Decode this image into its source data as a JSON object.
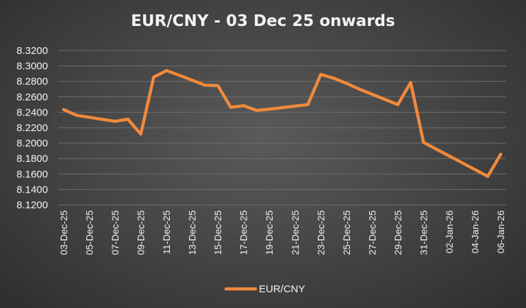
{
  "chart_data": {
    "type": "line",
    "title": "EUR/CNY - 03 Dec 25 onwards",
    "xlabel": "",
    "ylabel": "",
    "ylim": [
      8.12,
      8.32
    ],
    "ytick_step": 0.02,
    "ytick_labels": [
      "8.1200",
      "8.1400",
      "8.1600",
      "8.1800",
      "8.2000",
      "8.2200",
      "8.2400",
      "8.2600",
      "8.2800",
      "8.3000",
      "8.3200"
    ],
    "x_tick_labels": [
      "03-Dec-25",
      "05-Dec-25",
      "07-Dec-25",
      "09-Dec-25",
      "11-Dec-25",
      "13-Dec-25",
      "15-Dec-25",
      "17-Dec-25",
      "19-Dec-25",
      "21-Dec-25",
      "23-Dec-25",
      "25-Dec-25",
      "27-Dec-25",
      "29-Dec-25",
      "31-Dec-25",
      "02-Jan-26",
      "04-Jan-26",
      "06-Jan-26"
    ],
    "x": [
      "03-Dec-25",
      "04-Dec-25",
      "07-Dec-25",
      "08-Dec-25",
      "09-Dec-25",
      "10-Dec-25",
      "11-Dec-25",
      "12-Dec-25",
      "14-Dec-25",
      "15-Dec-25",
      "16-Dec-25",
      "17-Dec-25",
      "18-Dec-25",
      "19-Dec-25",
      "20-Dec-25",
      "22-Dec-25",
      "23-Dec-25",
      "24-Dec-25",
      "25-Dec-25",
      "26-Dec-25",
      "29-Dec-25",
      "30-Dec-25",
      "31-Dec-25",
      "05-Jan-26",
      "06-Jan-26"
    ],
    "series": [
      {
        "name": "EUR/CNY",
        "color": "#f08a3c",
        "values": [
          8.2435,
          8.236,
          8.2283,
          8.231,
          8.2118,
          8.2855,
          8.294,
          8.288,
          8.275,
          8.2745,
          8.2465,
          8.2485,
          8.2425,
          8.244,
          8.246,
          8.25,
          8.289,
          8.2842,
          8.2775,
          8.27,
          8.25,
          8.2785,
          8.201,
          8.157,
          8.1855
        ]
      }
    ],
    "grid": true,
    "legend": "bottom"
  }
}
